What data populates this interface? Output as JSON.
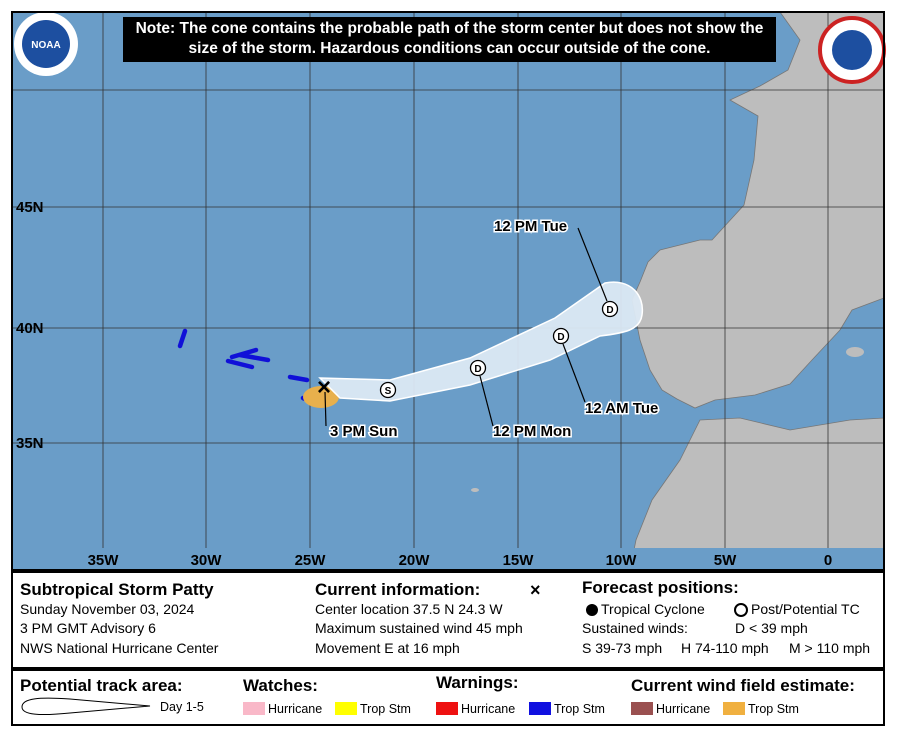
{
  "note": "Note: The cone contains the probable path of the storm center but does not show the size of the storm. Hazardous conditions can occur outside of the cone.",
  "logos": {
    "noaa": "NOAA"
  },
  "map": {
    "lat_labels": [
      "45N",
      "40N",
      "35N"
    ],
    "lon_labels": [
      "35W",
      "30W",
      "25W",
      "20W",
      "15W",
      "10W",
      "5W",
      "0"
    ],
    "current_symbol": "×",
    "point_symbols": [
      "S",
      "D",
      "D",
      "D"
    ],
    "time_labels": [
      "3 PM Sun",
      "12 PM Mon",
      "12 AM Tue",
      "12 PM Tue"
    ]
  },
  "info": {
    "storm_name": "Subtropical Storm Patty",
    "date": "Sunday November 03, 2024",
    "advisory": "3 PM GMT Advisory 6",
    "office": "NWS National Hurricane Center"
  },
  "current": {
    "title": "Current information:",
    "symbol": "×",
    "location": "Center location 37.5 N 24.3 W",
    "wind": "Maximum sustained wind 45 mph",
    "movement": "Movement E at 16 mph"
  },
  "forecast": {
    "title": "Forecast positions:",
    "tc": "Tropical Cyclone",
    "ptc": "Post/Potential TC",
    "sustained": "Sustained winds:",
    "d": "D < 39 mph",
    "s": "S 39-73 mph",
    "h": "H 74-110 mph",
    "m": "M > 110 mph"
  },
  "legend": {
    "track": {
      "title": "Potential track area:",
      "day": "Day 1-5"
    },
    "watches": {
      "title": "Watches:",
      "items": [
        "Hurricane",
        "Trop Stm"
      ]
    },
    "warnings": {
      "title": "Warnings:",
      "items": [
        "Hurricane",
        "Trop Stm"
      ]
    },
    "wind_field": {
      "title": "Current wind field estimate:",
      "items": [
        "Hurricane",
        "Trop Stm"
      ]
    }
  }
}
